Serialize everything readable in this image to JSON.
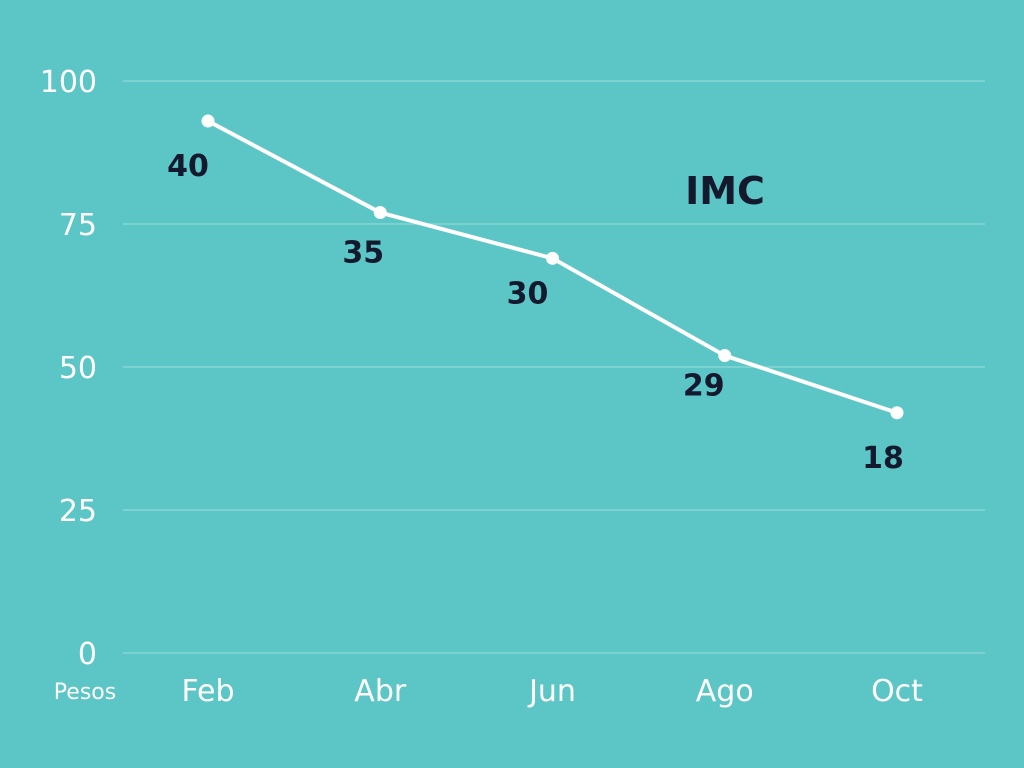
{
  "chart_data": {
    "type": "line",
    "title": "",
    "xlabel": "",
    "ylabel": "Pesos",
    "annotation": "IMC",
    "categories": [
      "Feb",
      "Abr",
      "Jun",
      "Ago",
      "Oct"
    ],
    "values": [
      93,
      77,
      69,
      52,
      42
    ],
    "data_labels": [
      "40",
      "35",
      "30",
      "29",
      "18"
    ],
    "y_ticks": [
      0,
      25,
      50,
      75,
      100
    ],
    "ylim": [
      0,
      100
    ],
    "grid": true,
    "legend": "none"
  },
  "colors": {
    "background": "#5cc6c6",
    "line": "#ffffff",
    "grid": "#86d6d4",
    "label_text": "#14192e",
    "tick_text": "#ffffff"
  }
}
